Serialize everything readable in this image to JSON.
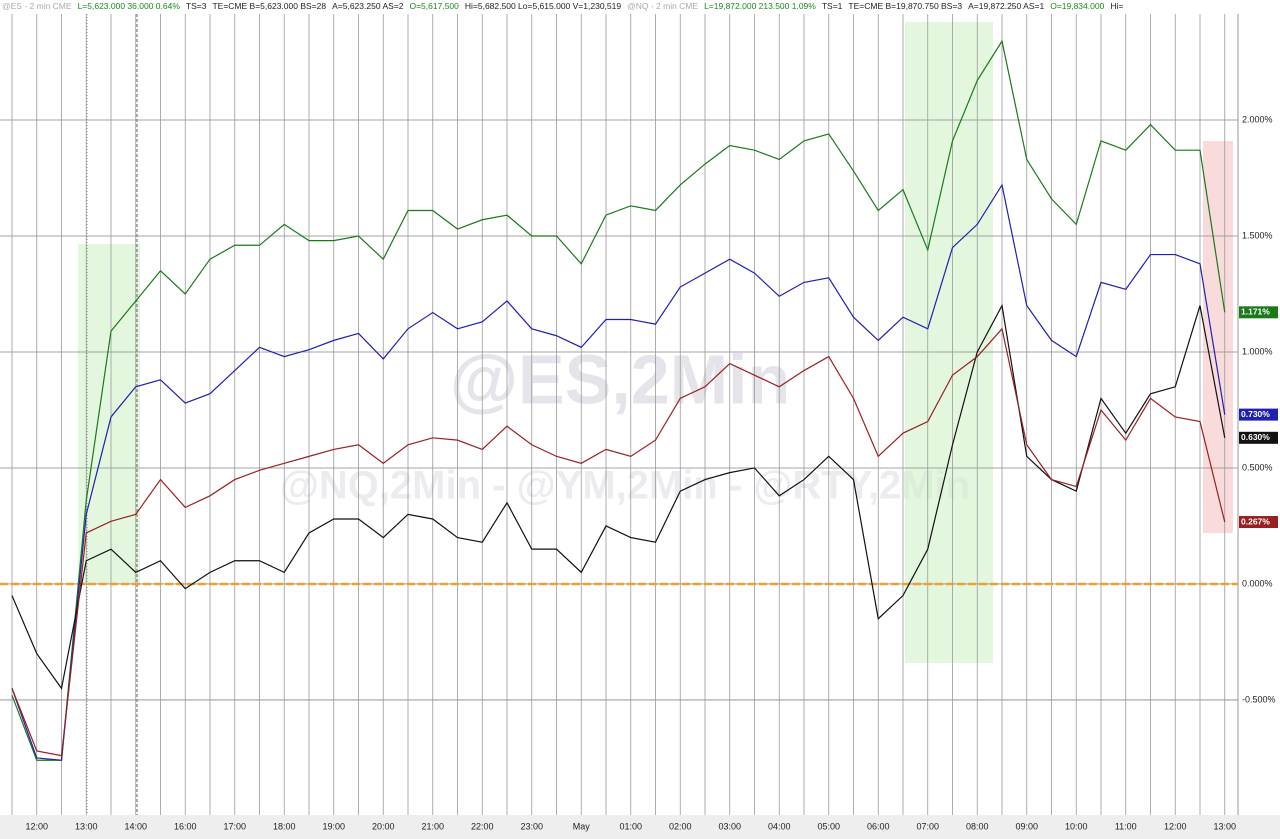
{
  "chart_data": {
    "type": "line",
    "header": [
      {
        "text": "@ES - 2 min  CME",
        "color": "#aaaaaa"
      },
      {
        "text": "L=5,623.000  36.000  0.64%",
        "color": "#1a8a1a"
      },
      {
        "text": "TS=3",
        "color": "#222222"
      },
      {
        "text": "TE=CME  B=5,623.000  BS=28",
        "color": "#222222"
      },
      {
        "text": "A=5,623.250  AS=2",
        "color": "#222222"
      },
      {
        "text": "O=5,617.500",
        "color": "#1a8a1a"
      },
      {
        "text": "Hi=5,682.500  Lo=5,615.000  V=1,230,519",
        "color": "#222222"
      },
      {
        "text": "@NQ - 2 min  CME",
        "color": "#aaaaaa"
      },
      {
        "text": "L=19,872.000  213.500  1.09%",
        "color": "#1a8a1a"
      },
      {
        "text": "TS=1",
        "color": "#222222"
      },
      {
        "text": "TE=CME  B=19,870.750  BS=3",
        "color": "#222222"
      },
      {
        "text": "A=19,872.250  AS=1",
        "color": "#222222"
      },
      {
        "text": "O=19,834.000",
        "color": "#1a8a1a"
      },
      {
        "text": "Hi=",
        "color": "#222222"
      }
    ],
    "watermark": [
      "@ES,2Min",
      "@NQ,2Min - @YM,2Min - @RTY,2Min"
    ],
    "categories": [
      null,
      "12:00",
      null,
      "13:00",
      null,
      "14:00",
      null,
      "16:00",
      null,
      "17:00",
      null,
      "18:00",
      null,
      "19:00",
      null,
      "20:00",
      null,
      "21:00",
      null,
      "22:00",
      null,
      "23:00",
      null,
      "May",
      null,
      "01:00",
      null,
      "02:00",
      null,
      "03:00",
      null,
      "04:00",
      null,
      "05:00",
      null,
      "06:00",
      null,
      "07:00",
      null,
      "08:00",
      null,
      "09:00",
      null,
      "10:00",
      null,
      "11:00",
      null,
      "12:00",
      null,
      "13:00"
    ],
    "series": [
      {
        "name": "@NQ",
        "color": "#1a7a1a",
        "values": [
          -0.48,
          -0.76,
          -0.76,
          0.36,
          1.09,
          1.22,
          1.35,
          1.25,
          1.4,
          1.46,
          1.46,
          1.55,
          1.48,
          1.48,
          1.5,
          1.4,
          1.61,
          1.61,
          1.53,
          1.57,
          1.59,
          1.5,
          1.5,
          1.38,
          1.59,
          1.63,
          1.61,
          1.72,
          1.81,
          1.89,
          1.87,
          1.83,
          1.91,
          1.94,
          1.78,
          1.61,
          1.7,
          1.44,
          1.91,
          2.17,
          2.34,
          1.83,
          1.66,
          1.55,
          1.91,
          1.87,
          1.98,
          1.87,
          1.87,
          1.171
        ],
        "value_labels": [
          null,
          null,
          null,
          null,
          null,
          null,
          null,
          null,
          null,
          null,
          null,
          null,
          null,
          null,
          null,
          null,
          null,
          null,
          null,
          null,
          null,
          null,
          null,
          null,
          null,
          null,
          null,
          null,
          null,
          null,
          null,
          null,
          null,
          null,
          null,
          null,
          null,
          null,
          null,
          null,
          null,
          null,
          null,
          null,
          null,
          null,
          null,
          null,
          null,
          "1.171%"
        ]
      },
      {
        "name": "@ES",
        "color": "#2020b0",
        "values": [
          -0.45,
          -0.75,
          -0.76,
          0.3,
          0.72,
          0.85,
          0.88,
          0.78,
          0.82,
          0.92,
          1.02,
          0.98,
          1.01,
          1.05,
          1.08,
          0.97,
          1.1,
          1.17,
          1.1,
          1.13,
          1.22,
          1.1,
          1.07,
          1.02,
          1.14,
          1.14,
          1.12,
          1.28,
          1.34,
          1.4,
          1.34,
          1.24,
          1.3,
          1.32,
          1.15,
          1.05,
          1.15,
          1.1,
          1.45,
          1.55,
          1.72,
          1.2,
          1.05,
          0.98,
          1.3,
          1.27,
          1.42,
          1.42,
          1.38,
          0.73
        ],
        "value_labels": [
          null,
          null,
          null,
          null,
          null,
          null,
          null,
          null,
          null,
          null,
          null,
          null,
          null,
          null,
          null,
          null,
          null,
          null,
          null,
          null,
          null,
          null,
          null,
          null,
          null,
          null,
          null,
          null,
          null,
          null,
          null,
          null,
          null,
          null,
          null,
          null,
          null,
          null,
          null,
          null,
          null,
          null,
          null,
          null,
          null,
          null,
          null,
          null,
          null,
          "0.730%"
        ]
      },
      {
        "name": "@YM",
        "color": "#111111",
        "values": [
          -0.05,
          -0.3,
          -0.45,
          0.1,
          0.15,
          0.05,
          0.1,
          -0.02,
          0.05,
          0.1,
          0.1,
          0.05,
          0.22,
          0.28,
          0.28,
          0.2,
          0.3,
          0.28,
          0.2,
          0.18,
          0.35,
          0.15,
          0.15,
          0.05,
          0.25,
          0.2,
          0.18,
          0.4,
          0.45,
          0.48,
          0.5,
          0.38,
          0.45,
          0.55,
          0.45,
          -0.15,
          -0.05,
          0.15,
          0.6,
          1.0,
          1.2,
          0.55,
          0.45,
          0.4,
          0.8,
          0.65,
          0.82,
          0.85,
          1.2,
          0.63
        ],
        "value_labels": [
          null,
          null,
          null,
          null,
          null,
          null,
          null,
          null,
          null,
          null,
          null,
          null,
          null,
          null,
          null,
          null,
          null,
          null,
          null,
          null,
          null,
          null,
          null,
          null,
          null,
          null,
          null,
          null,
          null,
          null,
          null,
          null,
          null,
          null,
          null,
          null,
          null,
          null,
          null,
          null,
          null,
          null,
          null,
          null,
          null,
          null,
          null,
          null,
          null,
          "0.630%"
        ]
      },
      {
        "name": "@RTY",
        "color": "#9a2020",
        "values": [
          -0.45,
          -0.72,
          -0.74,
          0.22,
          0.27,
          0.3,
          0.45,
          0.33,
          0.38,
          0.45,
          0.49,
          0.52,
          0.55,
          0.58,
          0.6,
          0.52,
          0.6,
          0.63,
          0.62,
          0.58,
          0.68,
          0.6,
          0.55,
          0.52,
          0.58,
          0.55,
          0.62,
          0.8,
          0.85,
          0.95,
          0.9,
          0.85,
          0.92,
          0.98,
          0.8,
          0.55,
          0.65,
          0.7,
          0.9,
          0.98,
          1.1,
          0.6,
          0.45,
          0.42,
          0.75,
          0.62,
          0.8,
          0.72,
          0.7,
          0.267
        ],
        "value_labels": [
          null,
          null,
          null,
          null,
          null,
          null,
          null,
          null,
          null,
          null,
          null,
          null,
          null,
          null,
          null,
          null,
          null,
          null,
          null,
          null,
          null,
          null,
          null,
          null,
          null,
          null,
          null,
          null,
          null,
          null,
          null,
          null,
          null,
          null,
          null,
          null,
          null,
          null,
          null,
          null,
          null,
          null,
          null,
          null,
          null,
          null,
          null,
          null,
          null,
          "0.267%"
        ]
      }
    ],
    "ylim": [
      -0.996,
      2.457
    ],
    "yticks": [
      {
        "value": -0.5,
        "label": "-0.500%"
      },
      {
        "value": 0,
        "label": "0.000%"
      },
      {
        "value": 0.5,
        "label": "0.500%"
      },
      {
        "value": 1,
        "label": "1.000%"
      },
      {
        "value": 1.5,
        "label": "1.500%"
      },
      {
        "value": 2,
        "label": "2.000%"
      }
    ],
    "grid": true,
    "hline": {
      "value": 0,
      "color": "#f0a030"
    }
  }
}
